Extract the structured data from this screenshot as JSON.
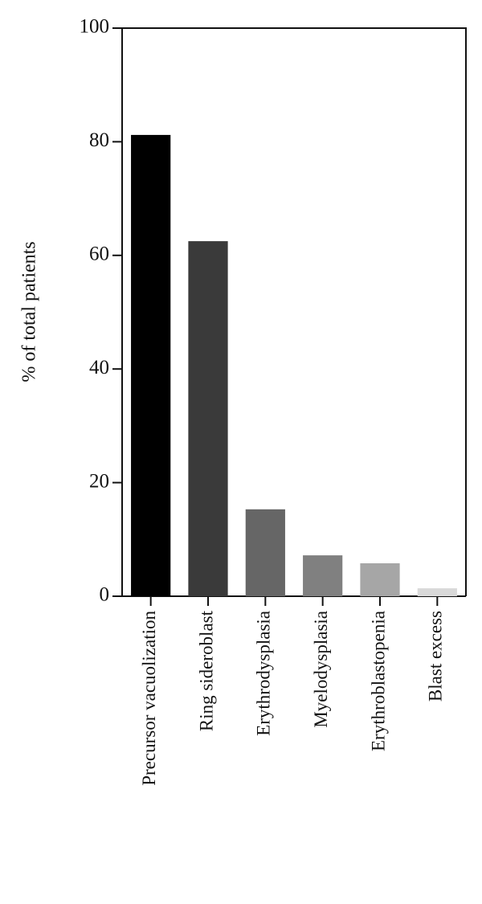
{
  "chart_data": {
    "type": "bar",
    "y_label": "% of total patients",
    "categories": [
      "Precursor vacuolization",
      "Ring sideroblast",
      "Erythrodysplasia",
      "Myelodysplasia",
      "Erythroblastopenia",
      "Blast excess"
    ],
    "values": [
      81.2,
      62.5,
      15.3,
      7.2,
      5.8,
      1.4
    ],
    "colors": [
      "#000000",
      "#3a3a3a",
      "#666666",
      "#808080",
      "#a6a6a6",
      "#d9d9d9"
    ],
    "ylim": [
      0,
      100
    ],
    "yticks": [
      0,
      20,
      40,
      60,
      80,
      100
    ],
    "grid": false
  }
}
